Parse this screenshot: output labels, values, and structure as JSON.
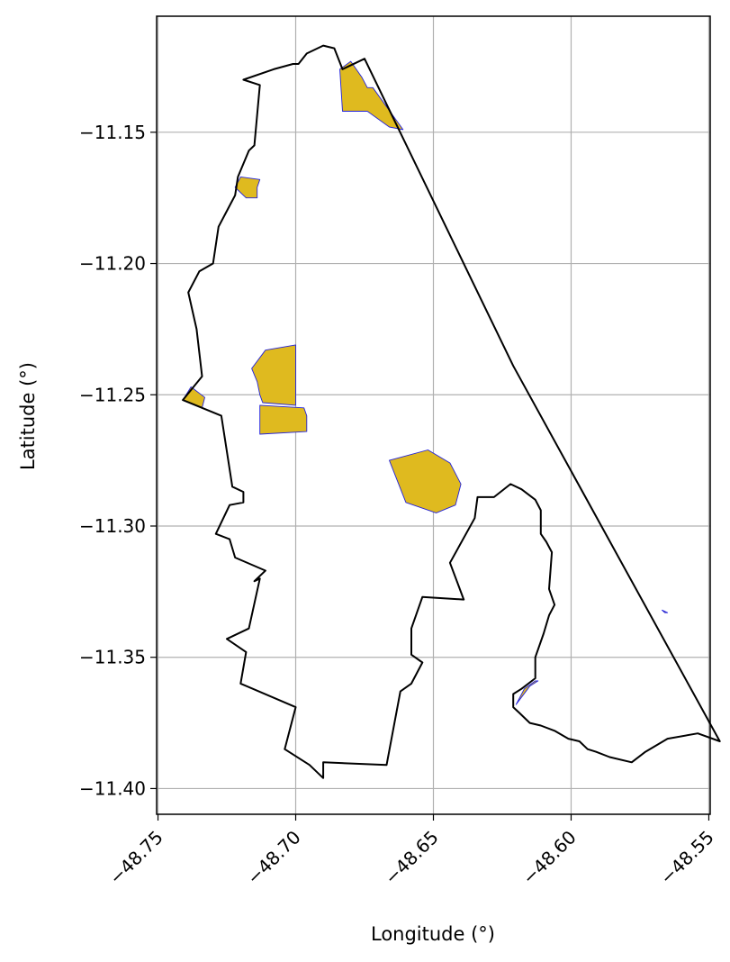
{
  "chart_data": {
    "type": "map",
    "xlabel": "Longitude (°)",
    "ylabel": "Latitude (°)",
    "xlim": [
      -48.7505,
      -48.5495
    ],
    "ylim": [
      -11.4098,
      -11.1058
    ],
    "grid": true,
    "x_ticks": [
      {
        "value": -48.75,
        "label": "−48.75"
      },
      {
        "value": -48.7,
        "label": "−48.70"
      },
      {
        "value": -48.65,
        "label": "−48.65"
      },
      {
        "value": -48.6,
        "label": "−48.60"
      },
      {
        "value": -48.55,
        "label": "−48.55"
      }
    ],
    "y_ticks": [
      {
        "value": -11.15,
        "label": "−11.15"
      },
      {
        "value": -11.2,
        "label": "−11.20"
      },
      {
        "value": -11.25,
        "label": "−11.25"
      },
      {
        "value": -11.3,
        "label": "−11.30"
      },
      {
        "value": -11.35,
        "label": "−11.35"
      },
      {
        "value": -11.4,
        "label": "−11.40"
      }
    ],
    "colors": {
      "boundary_stroke": "#000000",
      "patch_fill": "#dfba1f",
      "patch_stroke": "#2222dd",
      "grid": "#b0b0b0",
      "frame": "#000000"
    },
    "boundary": [
      [
        -48.69,
        -11.117
      ],
      [
        -48.686,
        -11.118
      ],
      [
        -48.683,
        -11.126
      ],
      [
        -48.675,
        -11.122
      ],
      [
        -48.621,
        -11.239
      ],
      [
        -48.546,
        -11.382
      ],
      [
        -48.554,
        -11.379
      ],
      [
        -48.565,
        -11.381
      ],
      [
        -48.573,
        -11.386
      ],
      [
        -48.578,
        -11.39
      ],
      [
        -48.586,
        -11.388
      ],
      [
        -48.591,
        -11.386
      ],
      [
        -48.594,
        -11.385
      ],
      [
        -48.597,
        -11.382
      ],
      [
        -48.601,
        -11.381
      ],
      [
        -48.606,
        -11.378
      ],
      [
        -48.611,
        -11.376
      ],
      [
        -48.615,
        -11.375
      ],
      [
        -48.619,
        -11.371
      ],
      [
        -48.621,
        -11.369
      ],
      [
        -48.621,
        -11.364
      ],
      [
        -48.618,
        -11.362
      ],
      [
        -48.613,
        -11.358
      ],
      [
        -48.613,
        -11.35
      ],
      [
        -48.61,
        -11.341
      ],
      [
        -48.608,
        -11.334
      ],
      [
        -48.606,
        -11.33
      ],
      [
        -48.608,
        -11.324
      ],
      [
        -48.607,
        -11.31
      ],
      [
        -48.609,
        -11.306
      ],
      [
        -48.611,
        -11.303
      ],
      [
        -48.611,
        -11.294
      ],
      [
        -48.613,
        -11.29
      ],
      [
        -48.618,
        -11.286
      ],
      [
        -48.622,
        -11.284
      ],
      [
        -48.628,
        -11.289
      ],
      [
        -48.634,
        -11.289
      ],
      [
        -48.635,
        -11.297
      ],
      [
        -48.644,
        -11.314
      ],
      [
        -48.639,
        -11.328
      ],
      [
        -48.654,
        -11.327
      ],
      [
        -48.658,
        -11.339
      ],
      [
        -48.658,
        -11.349
      ],
      [
        -48.654,
        -11.352
      ],
      [
        -48.658,
        -11.36
      ],
      [
        -48.662,
        -11.363
      ],
      [
        -48.667,
        -11.391
      ],
      [
        -48.69,
        -11.39
      ],
      [
        -48.69,
        -11.396
      ],
      [
        -48.695,
        -11.391
      ],
      [
        -48.704,
        -11.385
      ],
      [
        -48.7,
        -11.369
      ],
      [
        -48.72,
        -11.36
      ],
      [
        -48.718,
        -11.348
      ],
      [
        -48.725,
        -11.343
      ],
      [
        -48.717,
        -11.339
      ],
      [
        -48.713,
        -11.32
      ],
      [
        -48.715,
        -11.321
      ],
      [
        -48.711,
        -11.317
      ],
      [
        -48.722,
        -11.312
      ],
      [
        -48.724,
        -11.305
      ],
      [
        -48.729,
        -11.303
      ],
      [
        -48.724,
        -11.292
      ],
      [
        -48.719,
        -11.291
      ],
      [
        -48.719,
        -11.287
      ],
      [
        -48.723,
        -11.285
      ],
      [
        -48.727,
        -11.258
      ],
      [
        -48.741,
        -11.252
      ],
      [
        -48.734,
        -11.243
      ],
      [
        -48.736,
        -11.225
      ],
      [
        -48.739,
        -11.211
      ],
      [
        -48.735,
        -11.203
      ],
      [
        -48.73,
        -11.2
      ],
      [
        -48.728,
        -11.186
      ],
      [
        -48.722,
        -11.174
      ],
      [
        -48.721,
        -11.167
      ],
      [
        -48.717,
        -11.157
      ],
      [
        -48.715,
        -11.155
      ],
      [
        -48.713,
        -11.132
      ],
      [
        -48.719,
        -11.13
      ],
      [
        -48.708,
        -11.126
      ],
      [
        -48.701,
        -11.124
      ],
      [
        -48.699,
        -11.124
      ],
      [
        -48.696,
        -11.12
      ],
      [
        -48.69,
        -11.117
      ]
    ],
    "patches": [
      [
        [
          -48.684,
          -11.126
        ],
        [
          -48.68,
          -11.123
        ],
        [
          -48.676,
          -11.129
        ],
        [
          -48.674,
          -11.133
        ],
        [
          -48.672,
          -11.133
        ],
        [
          -48.661,
          -11.149
        ],
        [
          -48.666,
          -11.148
        ],
        [
          -48.674,
          -11.142
        ],
        [
          -48.683,
          -11.142
        ],
        [
          -48.684,
          -11.126
        ]
      ],
      [
        [
          -48.72,
          -11.167
        ],
        [
          -48.713,
          -11.168
        ],
        [
          -48.714,
          -11.171
        ],
        [
          -48.714,
          -11.175
        ],
        [
          -48.718,
          -11.175
        ],
        [
          -48.722,
          -11.171
        ],
        [
          -48.72,
          -11.167
        ]
      ],
      [
        [
          -48.711,
          -11.233
        ],
        [
          -48.7,
          -11.231
        ],
        [
          -48.7,
          -11.254
        ],
        [
          -48.712,
          -11.253
        ],
        [
          -48.713,
          -11.25
        ],
        [
          -48.714,
          -11.245
        ],
        [
          -48.716,
          -11.24
        ],
        [
          -48.711,
          -11.233
        ]
      ],
      [
        [
          -48.713,
          -11.254
        ],
        [
          -48.697,
          -11.255
        ],
        [
          -48.696,
          -11.258
        ],
        [
          -48.696,
          -11.264
        ],
        [
          -48.713,
          -11.265
        ],
        [
          -48.713,
          -11.254
        ]
      ],
      [
        [
          -48.738,
          -11.247
        ],
        [
          -48.741,
          -11.252
        ],
        [
          -48.734,
          -11.255
        ],
        [
          -48.733,
          -11.251
        ],
        [
          -48.738,
          -11.247
        ]
      ],
      [
        [
          -48.666,
          -11.275
        ],
        [
          -48.652,
          -11.271
        ],
        [
          -48.644,
          -11.276
        ],
        [
          -48.64,
          -11.284
        ],
        [
          -48.642,
          -11.292
        ],
        [
          -48.649,
          -11.295
        ],
        [
          -48.66,
          -11.291
        ],
        [
          -48.666,
          -11.275
        ]
      ],
      [
        [
          -48.617,
          -11.362
        ],
        [
          -48.613,
          -11.359
        ],
        [
          -48.612,
          -11.359
        ],
        [
          -48.615,
          -11.361
        ],
        [
          -48.62,
          -11.368
        ],
        [
          -48.617,
          -11.362
        ]
      ],
      [
        [
          -48.567,
          -11.332
        ],
        [
          -48.566,
          -11.333
        ],
        [
          -48.565,
          -11.333
        ],
        [
          -48.567,
          -11.332
        ]
      ]
    ]
  }
}
